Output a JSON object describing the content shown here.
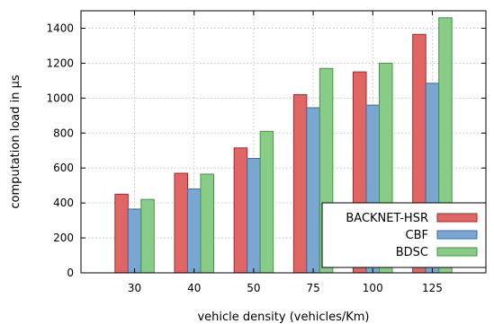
{
  "chart_data": {
    "type": "bar",
    "title": "",
    "xlabel": "vehicle density (vehicles/Km)",
    "ylabel": "computation load in µs",
    "categories": [
      "30",
      "40",
      "50",
      "75",
      "100",
      "125"
    ],
    "ylim": [
      0,
      1500
    ],
    "yticks": [
      0,
      200,
      400,
      600,
      800,
      1000,
      1200,
      1400
    ],
    "grid": true,
    "legend_position": "bottom-right",
    "series": [
      {
        "name": "BACKNET-HSR",
        "values": [
          450,
          570,
          715,
          1020,
          1150,
          1365
        ],
        "color": "#e06666",
        "edge": "#b22222"
      },
      {
        "name": "CBF",
        "values": [
          365,
          480,
          655,
          945,
          960,
          1085
        ],
        "color": "#7aa6d2",
        "edge": "#3b6ea5"
      },
      {
        "name": "BDSC",
        "values": [
          420,
          565,
          810,
          1170,
          1200,
          1460
        ],
        "color": "#88cc88",
        "edge": "#3f9a3f"
      }
    ]
  }
}
